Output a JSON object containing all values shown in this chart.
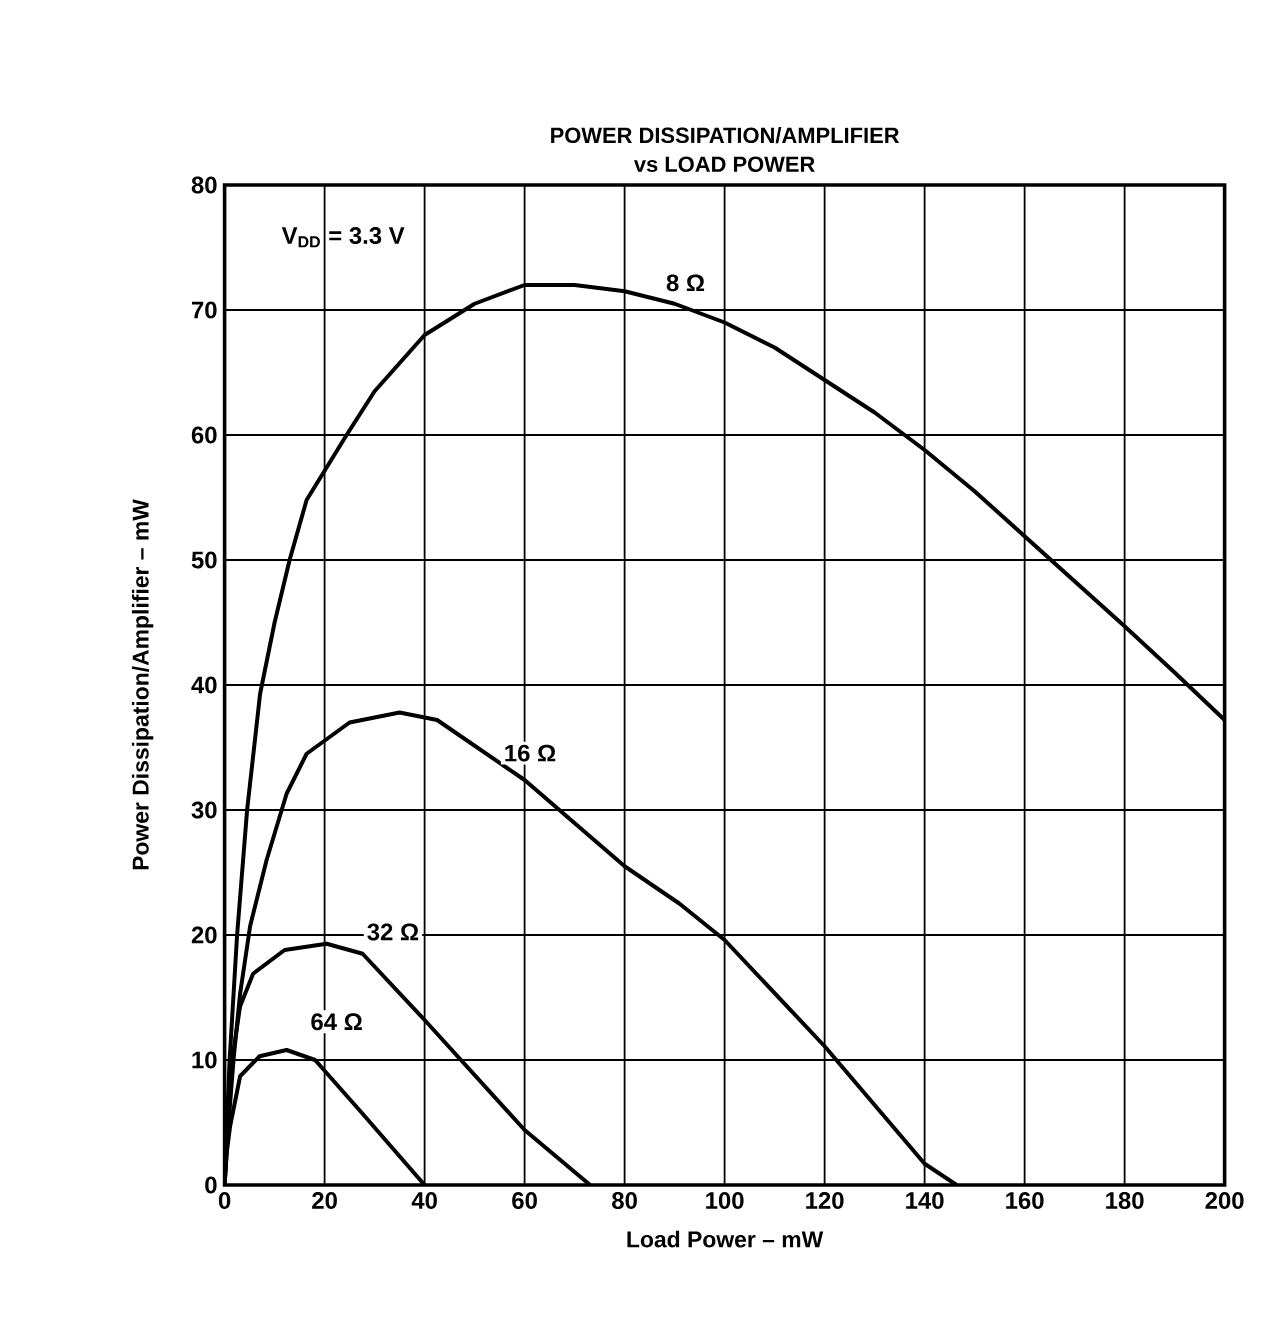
{
  "chart_data": {
    "type": "line",
    "title": "POWER DISSIPATION/AMPLIFIER",
    "subtitle": "vs LOAD POWER",
    "xlabel": "Load Power – mW",
    "ylabel": "Power Dissipation/Amplifier – mW",
    "annotations": [
      "V$_{DD}$ = 3.3 V"
    ],
    "xlim": [
      0,
      200
    ],
    "ylim": [
      0,
      80
    ],
    "xticks": [
      0,
      20,
      40,
      60,
      80,
      100,
      120,
      140,
      160,
      180,
      200
    ],
    "yticks": [
      0,
      10,
      20,
      30,
      40,
      50,
      60,
      70,
      80
    ],
    "grid": true,
    "legend": false,
    "marker": "none",
    "line_style": "solid",
    "series": [
      {
        "name": "8 Ω",
        "color": "#000000",
        "x": [
          0,
          1,
          2.5,
          4.5,
          7.1,
          10,
          13,
          16.4,
          24.4,
          30,
          40,
          50,
          60,
          70,
          80,
          90,
          100,
          110,
          120,
          130,
          140,
          150,
          160,
          170,
          180,
          190,
          200
        ],
        "values": [
          0,
          10,
          20,
          30,
          39.3,
          45,
          50,
          54.8,
          60,
          63.5,
          68,
          70.5,
          72,
          72,
          71.5,
          70.5,
          69,
          67,
          64.4,
          61.8,
          58.8,
          55.5,
          51.9,
          48.3,
          44.7,
          41,
          37.2
        ]
      },
      {
        "name": "16 Ω",
        "color": "#000000",
        "x": [
          0,
          0.8,
          1.8,
          3.1,
          5.1,
          8.4,
          12.4,
          16.4,
          25,
          35,
          42.5,
          60,
          80,
          91,
          100,
          120,
          140,
          146.4
        ],
        "values": [
          0,
          5,
          10.1,
          15.3,
          20.7,
          26,
          31.3,
          34.5,
          37,
          37.8,
          37.2,
          32.4,
          25.5,
          22.5,
          19.6,
          11.1,
          1.7,
          0
        ]
      },
      {
        "name": "32 Ω",
        "color": "#000000",
        "x": [
          0,
          0.4,
          1.1,
          3.1,
          5.7,
          12,
          20.4,
          27.6,
          40,
          60,
          73.1
        ],
        "values": [
          0,
          4,
          8.9,
          14.3,
          16.9,
          18.8,
          19.3,
          18.5,
          13.2,
          4.4,
          0
        ]
      },
      {
        "name": "64 Ω",
        "color": "#000000",
        "x": [
          0,
          0.4,
          1.1,
          3.1,
          7,
          12.4,
          18.1,
          27.6,
          40
        ],
        "values": [
          0,
          2.5,
          4.7,
          8.7,
          10.3,
          10.8,
          10,
          5.7,
          0
        ]
      }
    ]
  }
}
